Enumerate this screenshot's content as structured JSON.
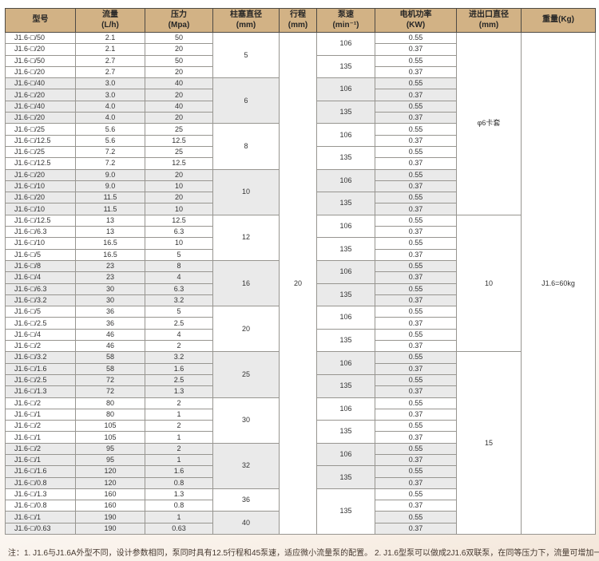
{
  "note": {
    "text": "注：1. J1.6与J1.6A外型不同，设计参数相同，泵同时具有12.5行程和45泵速，适应微小流量泵的配置。 2. J1.6型泵可以做成2J1.6双联泵，在同等压力下，流量可增加一倍"
  },
  "colors": {
    "header_bg": "#d2b285",
    "shaded_row_bg": "#eaeaea",
    "outer_border": "#4e4a44",
    "inner_border": "#979590"
  },
  "chart_data": {
    "type": "table",
    "headers": [
      {
        "title": "型号",
        "unit": ""
      },
      {
        "title": "流量",
        "unit": "(L/h)"
      },
      {
        "title": "压力",
        "unit": "(Mpa)"
      },
      {
        "title": "柱塞直径",
        "unit": "(mm)"
      },
      {
        "title": "行程",
        "unit": "(mm)"
      },
      {
        "title": "泵速",
        "unit": "(min⁻¹)"
      },
      {
        "title": "电机功率",
        "unit": "(KW)"
      },
      {
        "title": "进出口直径",
        "unit": "(mm)"
      },
      {
        "title": "重量(Kg)",
        "unit": ""
      }
    ],
    "rows": [
      {
        "model": "J1.6-□/50",
        "flow": "2.1",
        "pressure": "50",
        "power": "0.55"
      },
      {
        "model": "J1.6-□/20",
        "flow": "2.1",
        "pressure": "20",
        "power": "0.37"
      },
      {
        "model": "J1.6-□/50",
        "flow": "2.7",
        "pressure": "50",
        "power": "0.55"
      },
      {
        "model": "J1.6-□/20",
        "flow": "2.7",
        "pressure": "20",
        "power": "0.37"
      },
      {
        "model": "J1.6-□/40",
        "flow": "3.0",
        "pressure": "40",
        "power": "0.55"
      },
      {
        "model": "J1.6-□/20",
        "flow": "3.0",
        "pressure": "20",
        "power": "0.37"
      },
      {
        "model": "J1.6-□/40",
        "flow": "4.0",
        "pressure": "40",
        "power": "0.55"
      },
      {
        "model": "J1.6-□/20",
        "flow": "4.0",
        "pressure": "20",
        "power": "0.37"
      },
      {
        "model": "J1.6-□/25",
        "flow": "5.6",
        "pressure": "25",
        "power": "0.55"
      },
      {
        "model": "J1.6-□/12.5",
        "flow": "5.6",
        "pressure": "12.5",
        "power": "0.37"
      },
      {
        "model": "J1.6-□/25",
        "flow": "7.2",
        "pressure": "25",
        "power": "0.55"
      },
      {
        "model": "J1.6-□/12.5",
        "flow": "7.2",
        "pressure": "12.5",
        "power": "0.37"
      },
      {
        "model": "J1.6-□/20",
        "flow": "9.0",
        "pressure": "20",
        "power": "0.55"
      },
      {
        "model": "J1.6-□/10",
        "flow": "9.0",
        "pressure": "10",
        "power": "0.37"
      },
      {
        "model": "J1.6-□/20",
        "flow": "11.5",
        "pressure": "20",
        "power": "0.55"
      },
      {
        "model": "J1.6-□/10",
        "flow": "11.5",
        "pressure": "10",
        "power": "0.37"
      },
      {
        "model": "J1.6-□/12.5",
        "flow": "13",
        "pressure": "12.5",
        "power": "0.55"
      },
      {
        "model": "J1.6-□/6.3",
        "flow": "13",
        "pressure": "6.3",
        "power": "0.37"
      },
      {
        "model": "J1.6-□/10",
        "flow": "16.5",
        "pressure": "10",
        "power": "0.55"
      },
      {
        "model": "J1.6-□/5",
        "flow": "16.5",
        "pressure": "5",
        "power": "0.37"
      },
      {
        "model": "J1.6-□/8",
        "flow": "23",
        "pressure": "8",
        "power": "0.55"
      },
      {
        "model": "J1.6-□/4",
        "flow": "23",
        "pressure": "4",
        "power": "0.37"
      },
      {
        "model": "J1.6-□/6.3",
        "flow": "30",
        "pressure": "6.3",
        "power": "0.55"
      },
      {
        "model": "J1.6-□/3.2",
        "flow": "30",
        "pressure": "3.2",
        "power": "0.37"
      },
      {
        "model": "J1.6-□/5",
        "flow": "36",
        "pressure": "5",
        "power": "0.55"
      },
      {
        "model": "J1.6-□/2.5",
        "flow": "36",
        "pressure": "2.5",
        "power": "0.37"
      },
      {
        "model": "J1.6-□/4",
        "flow": "46",
        "pressure": "4",
        "power": "0.55"
      },
      {
        "model": "J1.6-□/2",
        "flow": "46",
        "pressure": "2",
        "power": "0.37"
      },
      {
        "model": "J1.6-□/3.2",
        "flow": "58",
        "pressure": "3.2",
        "power": "0.55"
      },
      {
        "model": "J1.6-□/1.6",
        "flow": "58",
        "pressure": "1.6",
        "power": "0.37"
      },
      {
        "model": "J1.6-□/2.5",
        "flow": "72",
        "pressure": "2.5",
        "power": "0.55"
      },
      {
        "model": "J1.6-□/1.3",
        "flow": "72",
        "pressure": "1.3",
        "power": "0.37"
      },
      {
        "model": "J1.6-□/2",
        "flow": "80",
        "pressure": "2",
        "power": "0.55"
      },
      {
        "model": "J1.6-□/1",
        "flow": "80",
        "pressure": "1",
        "power": "0.37"
      },
      {
        "model": "J1.6-□/2",
        "flow": "105",
        "pressure": "2",
        "power": "0.55"
      },
      {
        "model": "J1.6-□/1",
        "flow": "105",
        "pressure": "1",
        "power": "0.37"
      },
      {
        "model": "J1.6-□/2",
        "flow": "95",
        "pressure": "2",
        "power": "0.55"
      },
      {
        "model": "J1.6-□/1",
        "flow": "95",
        "pressure": "1",
        "power": "0.37"
      },
      {
        "model": "J1.6-□/1.6",
        "flow": "120",
        "pressure": "1.6",
        "power": "0.55"
      },
      {
        "model": "J1.6-□/0.8",
        "flow": "120",
        "pressure": "0.8",
        "power": "0.37"
      },
      {
        "model": "J1.6-□/1.3",
        "flow": "160",
        "pressure": "1.3",
        "power": "0.55"
      },
      {
        "model": "J1.6-□/0.8",
        "flow": "160",
        "pressure": "0.8",
        "power": "0.37"
      },
      {
        "model": "J1.6-□/1",
        "flow": "190",
        "pressure": "1",
        "power": "0.55"
      },
      {
        "model": "J1.6-□/0.63",
        "flow": "190",
        "pressure": "0.63",
        "power": "0.37"
      }
    ],
    "plunger_groups": [
      {
        "value": "5",
        "span": 4,
        "shaded": false
      },
      {
        "value": "6",
        "span": 4,
        "shaded": true
      },
      {
        "value": "8",
        "span": 4,
        "shaded": false
      },
      {
        "value": "10",
        "span": 4,
        "shaded": true
      },
      {
        "value": "12",
        "span": 4,
        "shaded": false
      },
      {
        "value": "16",
        "span": 4,
        "shaded": true
      },
      {
        "value": "20",
        "span": 4,
        "shaded": false
      },
      {
        "value": "25",
        "span": 4,
        "shaded": true
      },
      {
        "value": "30",
        "span": 4,
        "shaded": false
      },
      {
        "value": "32",
        "span": 4,
        "shaded": true
      },
      {
        "value": "36",
        "span": 2,
        "shaded": false
      },
      {
        "value": "40",
        "span": 2,
        "shaded": true
      }
    ],
    "stroke_cell": {
      "value": "20",
      "span": 44
    },
    "speed_groups": [
      {
        "value": "106",
        "span": 2
      },
      {
        "value": "135",
        "span": 2
      },
      {
        "value": "106",
        "span": 2
      },
      {
        "value": "135",
        "span": 2
      },
      {
        "value": "106",
        "span": 2
      },
      {
        "value": "135",
        "span": 2
      },
      {
        "value": "106",
        "span": 2
      },
      {
        "value": "135",
        "span": 2
      },
      {
        "value": "106",
        "span": 2
      },
      {
        "value": "135",
        "span": 2
      },
      {
        "value": "106",
        "span": 2
      },
      {
        "value": "135",
        "span": 2
      },
      {
        "value": "106",
        "span": 2
      },
      {
        "value": "135",
        "span": 2
      },
      {
        "value": "106",
        "span": 2
      },
      {
        "value": "135",
        "span": 2
      },
      {
        "value": "106",
        "span": 2
      },
      {
        "value": "135",
        "span": 2
      },
      {
        "value": "106",
        "span": 2
      },
      {
        "value": "135",
        "span": 2
      },
      {
        "value": "135",
        "span": 4
      }
    ],
    "inlet_groups": [
      {
        "value": "φ6卡套",
        "span": 16
      },
      {
        "value": "10",
        "span": 12
      },
      {
        "value": "15",
        "span": 16
      }
    ],
    "weight_cell": {
      "value": "J1.6=60kg",
      "span": 44
    }
  }
}
